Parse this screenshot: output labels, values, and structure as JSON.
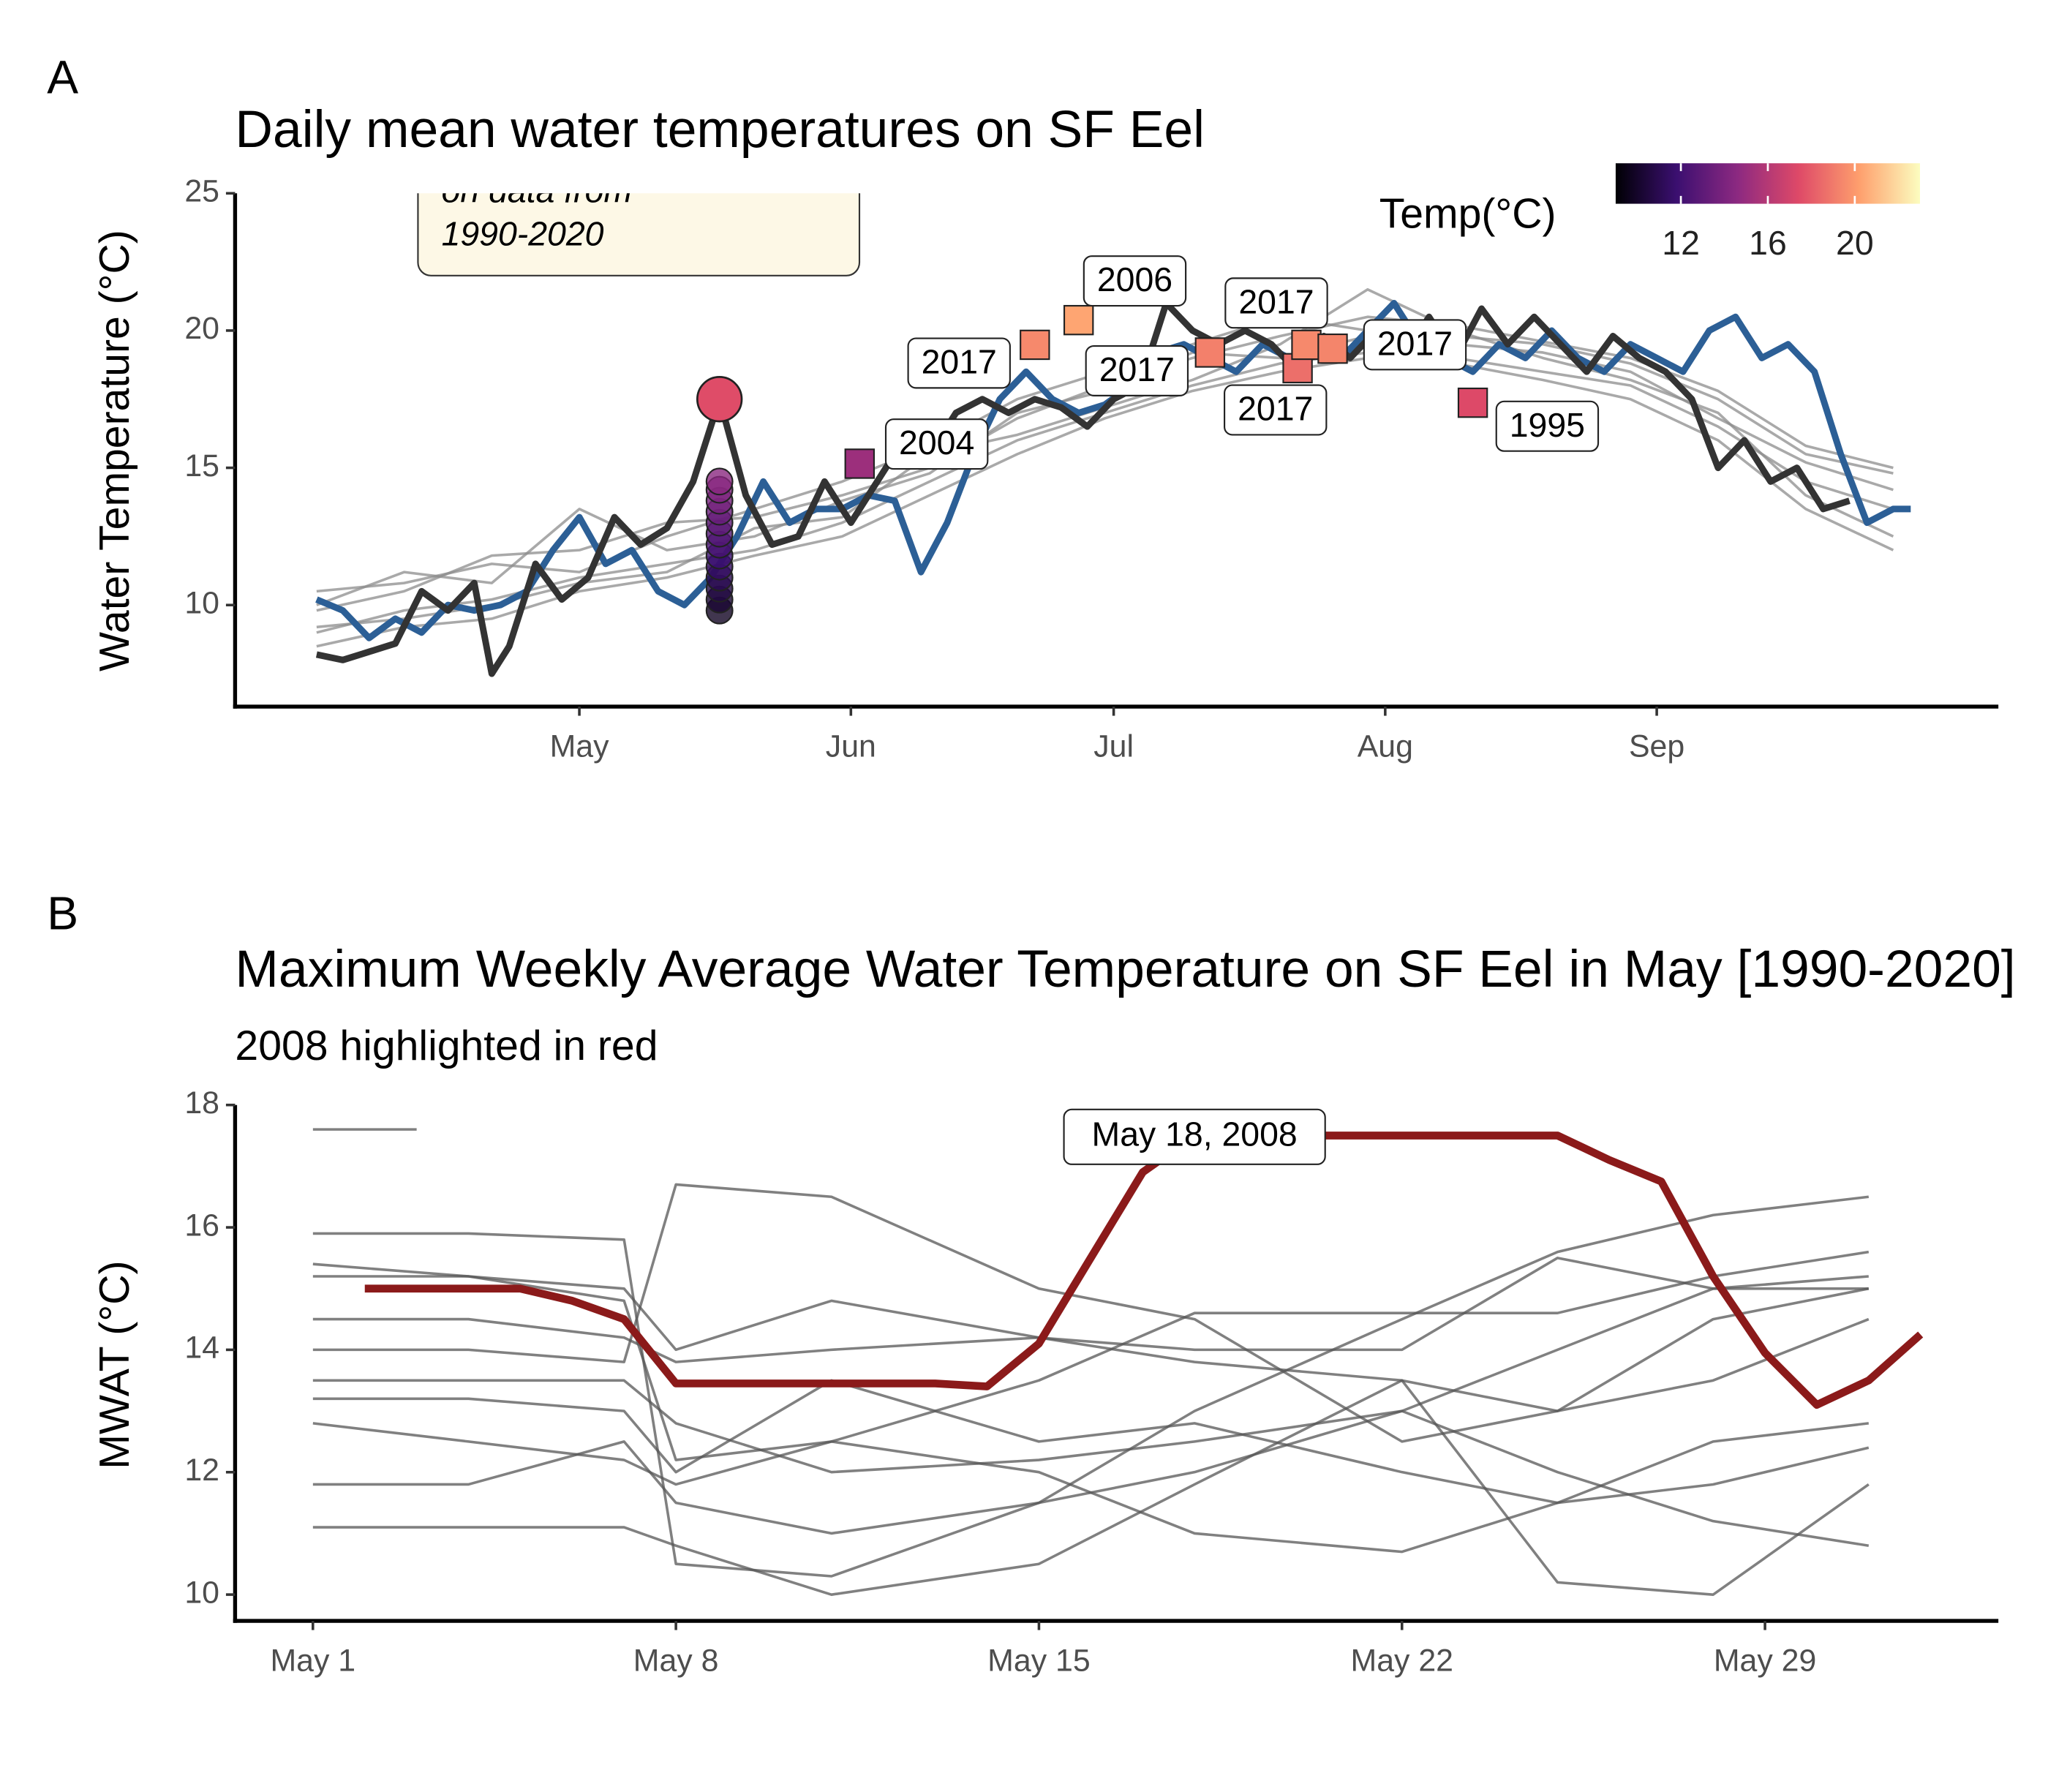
{
  "chart_data": [
    {
      "type": "line",
      "panel": "A",
      "title": "Daily mean water temperatures on SF Eel",
      "y_label": "Water Temperature  (°C)",
      "xlim": [
        81.7,
        283
      ],
      "ylim": [
        6.3,
        25
      ],
      "xticks": [
        {
          "value": 121,
          "label": "May"
        },
        {
          "value": 152,
          "label": "Jun"
        },
        {
          "value": 182,
          "label": "Jul"
        },
        {
          "value": 213,
          "label": "Aug"
        },
        {
          "value": 244,
          "label": "Sep"
        }
      ],
      "yticks": [
        10,
        15,
        20,
        25
      ],
      "note": [
        "on data from",
        "1990-2020"
      ],
      "x": [
        91,
        101,
        111,
        121,
        131,
        141,
        151,
        161,
        171,
        181,
        191,
        201,
        211,
        221,
        231,
        241,
        251,
        261,
        271
      ],
      "series": [
        {
          "color": "#8c8c8c",
          "linewidth": 2,
          "values": [
            9.0,
            9.8,
            10.2,
            11.0,
            11.5,
            12.0,
            13.0,
            14.5,
            16.0,
            17.0,
            18.0,
            18.8,
            19.2,
            19.0,
            18.5,
            18.0,
            16.5,
            14.5,
            13.5
          ]
        },
        {
          "color": "#8c8c8c",
          "linewidth": 2,
          "values": [
            10.5,
            10.8,
            11.5,
            11.2,
            12.5,
            13.5,
            14.5,
            15.8,
            17.5,
            18.5,
            19.5,
            20.5,
            20.0,
            19.8,
            19.5,
            18.8,
            17.5,
            15.5,
            14.8
          ]
        },
        {
          "color": "#8c8c8c",
          "linewidth": 2,
          "values": [
            8.5,
            9.2,
            9.5,
            10.5,
            11.0,
            11.8,
            12.5,
            14.0,
            15.5,
            16.8,
            17.8,
            18.5,
            19.0,
            18.8,
            18.2,
            17.5,
            16.0,
            13.5,
            12.0
          ]
        },
        {
          "color": "#8c8c8c",
          "linewidth": 2,
          "values": [
            9.8,
            10.5,
            11.8,
            12.0,
            13.0,
            13.2,
            14.0,
            15.0,
            16.8,
            18.0,
            19.0,
            19.8,
            20.5,
            20.2,
            19.6,
            19.0,
            17.8,
            15.8,
            15.0
          ]
        },
        {
          "color": "#8c8c8c",
          "linewidth": 2,
          "values": [
            9.2,
            9.5,
            10.0,
            10.8,
            11.2,
            12.8,
            13.2,
            15.5,
            16.2,
            17.2,
            18.2,
            19.5,
            21.5,
            20.0,
            19.0,
            18.2,
            17.0,
            14.0,
            12.5
          ]
        },
        {
          "color": "#8c8c8c",
          "linewidth": 2,
          "values": [
            10.0,
            11.2,
            10.8,
            13.5,
            12.0,
            12.5,
            13.8,
            14.8,
            17.0,
            17.8,
            19.2,
            19.0,
            19.8,
            19.5,
            19.2,
            18.5,
            16.8,
            15.2,
            14.2
          ]
        },
        {
          "color": "#2c5f96",
          "linewidth": 5,
          "x": [
            91,
            94,
            97,
            100,
            103,
            106,
            109,
            112,
            115,
            118,
            121,
            124,
            127,
            130,
            133,
            136,
            139,
            142,
            145,
            148,
            151,
            154,
            157,
            160,
            163,
            166,
            169,
            172,
            175,
            178,
            181,
            184,
            187,
            190,
            193,
            196,
            199,
            202,
            205,
            208,
            211,
            214,
            217,
            220,
            223,
            226,
            229,
            232,
            235,
            238,
            241,
            244,
            247,
            250,
            253,
            256,
            259,
            262,
            265,
            268,
            271,
            273
          ],
          "values": [
            10.2,
            9.8,
            8.8,
            9.5,
            9.0,
            10.0,
            9.8,
            10.0,
            10.5,
            12.0,
            13.2,
            11.5,
            12.0,
            10.5,
            10.0,
            11.0,
            12.5,
            14.5,
            13.0,
            13.5,
            13.5,
            14.0,
            13.8,
            11.2,
            13.0,
            15.5,
            17.5,
            18.5,
            17.5,
            17.0,
            17.3,
            18.0,
            19.2,
            19.5,
            19.0,
            18.5,
            19.5,
            19.0,
            19.5,
            19.0,
            20.0,
            21.0,
            19.5,
            19.0,
            18.5,
            19.5,
            19.0,
            20.0,
            19.0,
            18.5,
            19.5,
            19.0,
            18.5,
            20.0,
            20.5,
            19.0,
            19.5,
            18.5,
            15.5,
            13.0,
            13.5,
            13.5
          ]
        },
        {
          "color": "#333333",
          "linewidth": 5,
          "x": [
            91,
            94,
            97,
            100,
            103,
            106,
            109,
            111,
            113,
            116,
            119,
            122,
            125,
            128,
            131,
            134,
            137,
            140,
            143,
            146,
            149,
            152,
            155,
            158,
            161,
            164,
            167,
            170,
            173,
            176,
            179,
            182,
            185,
            188,
            191,
            194,
            197,
            200,
            203,
            206,
            209,
            212,
            215,
            218,
            221,
            224,
            227,
            230,
            233,
            236,
            239,
            242,
            245,
            248,
            251,
            254,
            257,
            260,
            263,
            266
          ],
          "values": [
            8.2,
            8.0,
            8.3,
            8.6,
            10.5,
            9.8,
            10.8,
            7.5,
            8.5,
            11.5,
            10.2,
            11.0,
            13.2,
            12.2,
            12.8,
            14.5,
            17.5,
            14.0,
            12.2,
            12.5,
            14.5,
            13.0,
            14.5,
            16.0,
            15.5,
            17.0,
            17.5,
            17.0,
            17.5,
            17.2,
            16.5,
            17.5,
            18.0,
            21.0,
            20.0,
            19.5,
            20.0,
            19.5,
            18.5,
            19.8,
            19.0,
            20.0,
            19.0,
            20.5,
            19.0,
            20.8,
            19.5,
            20.5,
            19.5,
            18.5,
            19.8,
            19.0,
            18.5,
            17.5,
            15.0,
            16.0,
            14.5,
            15.0,
            13.5,
            13.8
          ]
        }
      ],
      "points": {
        "x": [
          137,
          137,
          137,
          137,
          137,
          137,
          137,
          137,
          137,
          137,
          137,
          137,
          137
        ],
        "values": [
          9.8,
          10.2,
          10.6,
          11.0,
          11.4,
          11.8,
          12.2,
          12.6,
          13.0,
          13.4,
          13.8,
          14.2,
          14.5
        ]
      },
      "peak": {
        "x": 137,
        "value": 17.5
      },
      "squares": {
        "x": [
          153,
          173,
          178,
          193,
          203,
          204,
          207,
          223
        ],
        "values": [
          15.15,
          19.48,
          20.38,
          19.2,
          18.63,
          19.48,
          19.34,
          17.37
        ],
        "labels": [
          "2004",
          "2017",
          "2006",
          "2017",
          "2017",
          "2017",
          "2017",
          "1995"
        ]
      },
      "legend": {
        "title": "Temp(°C)",
        "clim": [
          9,
          23
        ],
        "ticks": [
          12,
          16,
          20
        ],
        "colorscale": [
          "#000004",
          "#3b0f70",
          "#8c2981",
          "#de4968",
          "#fe9f6d",
          "#fcfdbf"
        ]
      }
    },
    {
      "type": "line",
      "panel": "B",
      "title": "Maximum Weekly Average Water Temperature on SF Eel in May [1990-2020]",
      "subtitle": "2008 highlighted in red",
      "y_label": "MWAT  (°C)",
      "xlim": [
        -0.5,
        33.5
      ],
      "ylim": [
        9.57,
        18
      ],
      "xticks": [
        {
          "value": 1,
          "label": "May 1"
        },
        {
          "value": 8,
          "label": "May 8"
        },
        {
          "value": 15,
          "label": "May 15"
        },
        {
          "value": 22,
          "label": "May 22"
        },
        {
          "value": 29,
          "label": "May 29"
        }
      ],
      "yticks": [
        10,
        12,
        14,
        16,
        18
      ],
      "annotation": "May 18, 2008",
      "x": [
        1,
        4,
        7,
        8,
        11,
        15,
        18,
        22,
        25,
        28,
        31
      ],
      "series": [
        {
          "color": "#555555",
          "linewidth": 2,
          "values": [
            15.4,
            15.2,
            14.8,
            12.2,
            12.5,
            13.5,
            14.6,
            14.6,
            14.6,
            15.2,
            15.6
          ]
        },
        {
          "color": "#555555",
          "linewidth": 2,
          "values": [
            15.9,
            15.9,
            15.8,
            10.5,
            10.3,
            11.5,
            13.0,
            14.5,
            15.6,
            16.2,
            16.5
          ]
        },
        {
          "color": "#555555",
          "linewidth": 2,
          "values": [
            13.5,
            13.5,
            13.5,
            12.8,
            12.0,
            12.2,
            12.5,
            13.0,
            14.0,
            15.0,
            15.0
          ]
        },
        {
          "color": "#555555",
          "linewidth": 2,
          "values": [
            12.8,
            12.5,
            12.2,
            11.8,
            12.5,
            12.0,
            11.0,
            10.7,
            11.5,
            12.5,
            12.8
          ]
        },
        {
          "color": "#555555",
          "linewidth": 2,
          "values": [
            11.8,
            11.8,
            12.5,
            11.5,
            11.0,
            11.5,
            12.0,
            13.0,
            12.0,
            11.2,
            10.8
          ]
        },
        {
          "color": "#555555",
          "linewidth": 2,
          "values": [
            11.1,
            11.1,
            11.1,
            10.8,
            10.0,
            10.5,
            11.8,
            13.5,
            10.2,
            10.0,
            11.8
          ]
        },
        {
          "color": "#555555",
          "linewidth": 2,
          "values": [
            14.5,
            14.5,
            14.2,
            13.8,
            14.0,
            14.2,
            13.8,
            13.5,
            13.0,
            13.5,
            14.5
          ]
        },
        {
          "color": "#555555",
          "linewidth": 2,
          "values": [
            13.2,
            13.2,
            13.0,
            12.0,
            13.5,
            12.5,
            12.8,
            12.0,
            11.5,
            11.8,
            12.4
          ]
        },
        {
          "color": "#555555",
          "linewidth": 2,
          "values": [
            14.0,
            14.0,
            13.8,
            16.7,
            16.5,
            15.0,
            14.5,
            12.5,
            13.0,
            14.5,
            15.0
          ]
        },
        {
          "color": "#555555",
          "linewidth": 2,
          "values": [
            15.2,
            15.2,
            15.0,
            14.0,
            14.8,
            14.2,
            14.0,
            14.0,
            15.5,
            15.0,
            15.2
          ]
        },
        {
          "color": "#555555",
          "linewidth": 2,
          "x": [
            1,
            3
          ],
          "values": [
            17.6,
            17.6
          ]
        },
        {
          "color": "#8b1a1a",
          "linewidth": 6,
          "x": [
            2,
            3,
            4,
            5,
            6,
            7,
            8,
            9,
            10,
            11,
            12,
            13,
            14,
            15,
            16,
            17,
            18,
            19,
            20,
            21,
            22,
            23,
            24,
            25,
            26,
            27,
            28,
            29,
            30,
            31,
            32
          ],
          "values": [
            15.0,
            15.0,
            15.0,
            15.0,
            14.8,
            14.5,
            13.45,
            13.45,
            13.45,
            13.45,
            13.45,
            13.45,
            13.4,
            14.1,
            15.5,
            16.9,
            17.5,
            17.5,
            17.5,
            17.5,
            17.5,
            17.5,
            17.5,
            17.5,
            17.1,
            16.75,
            15.2,
            13.95,
            13.1,
            13.5,
            14.25
          ]
        }
      ]
    }
  ]
}
